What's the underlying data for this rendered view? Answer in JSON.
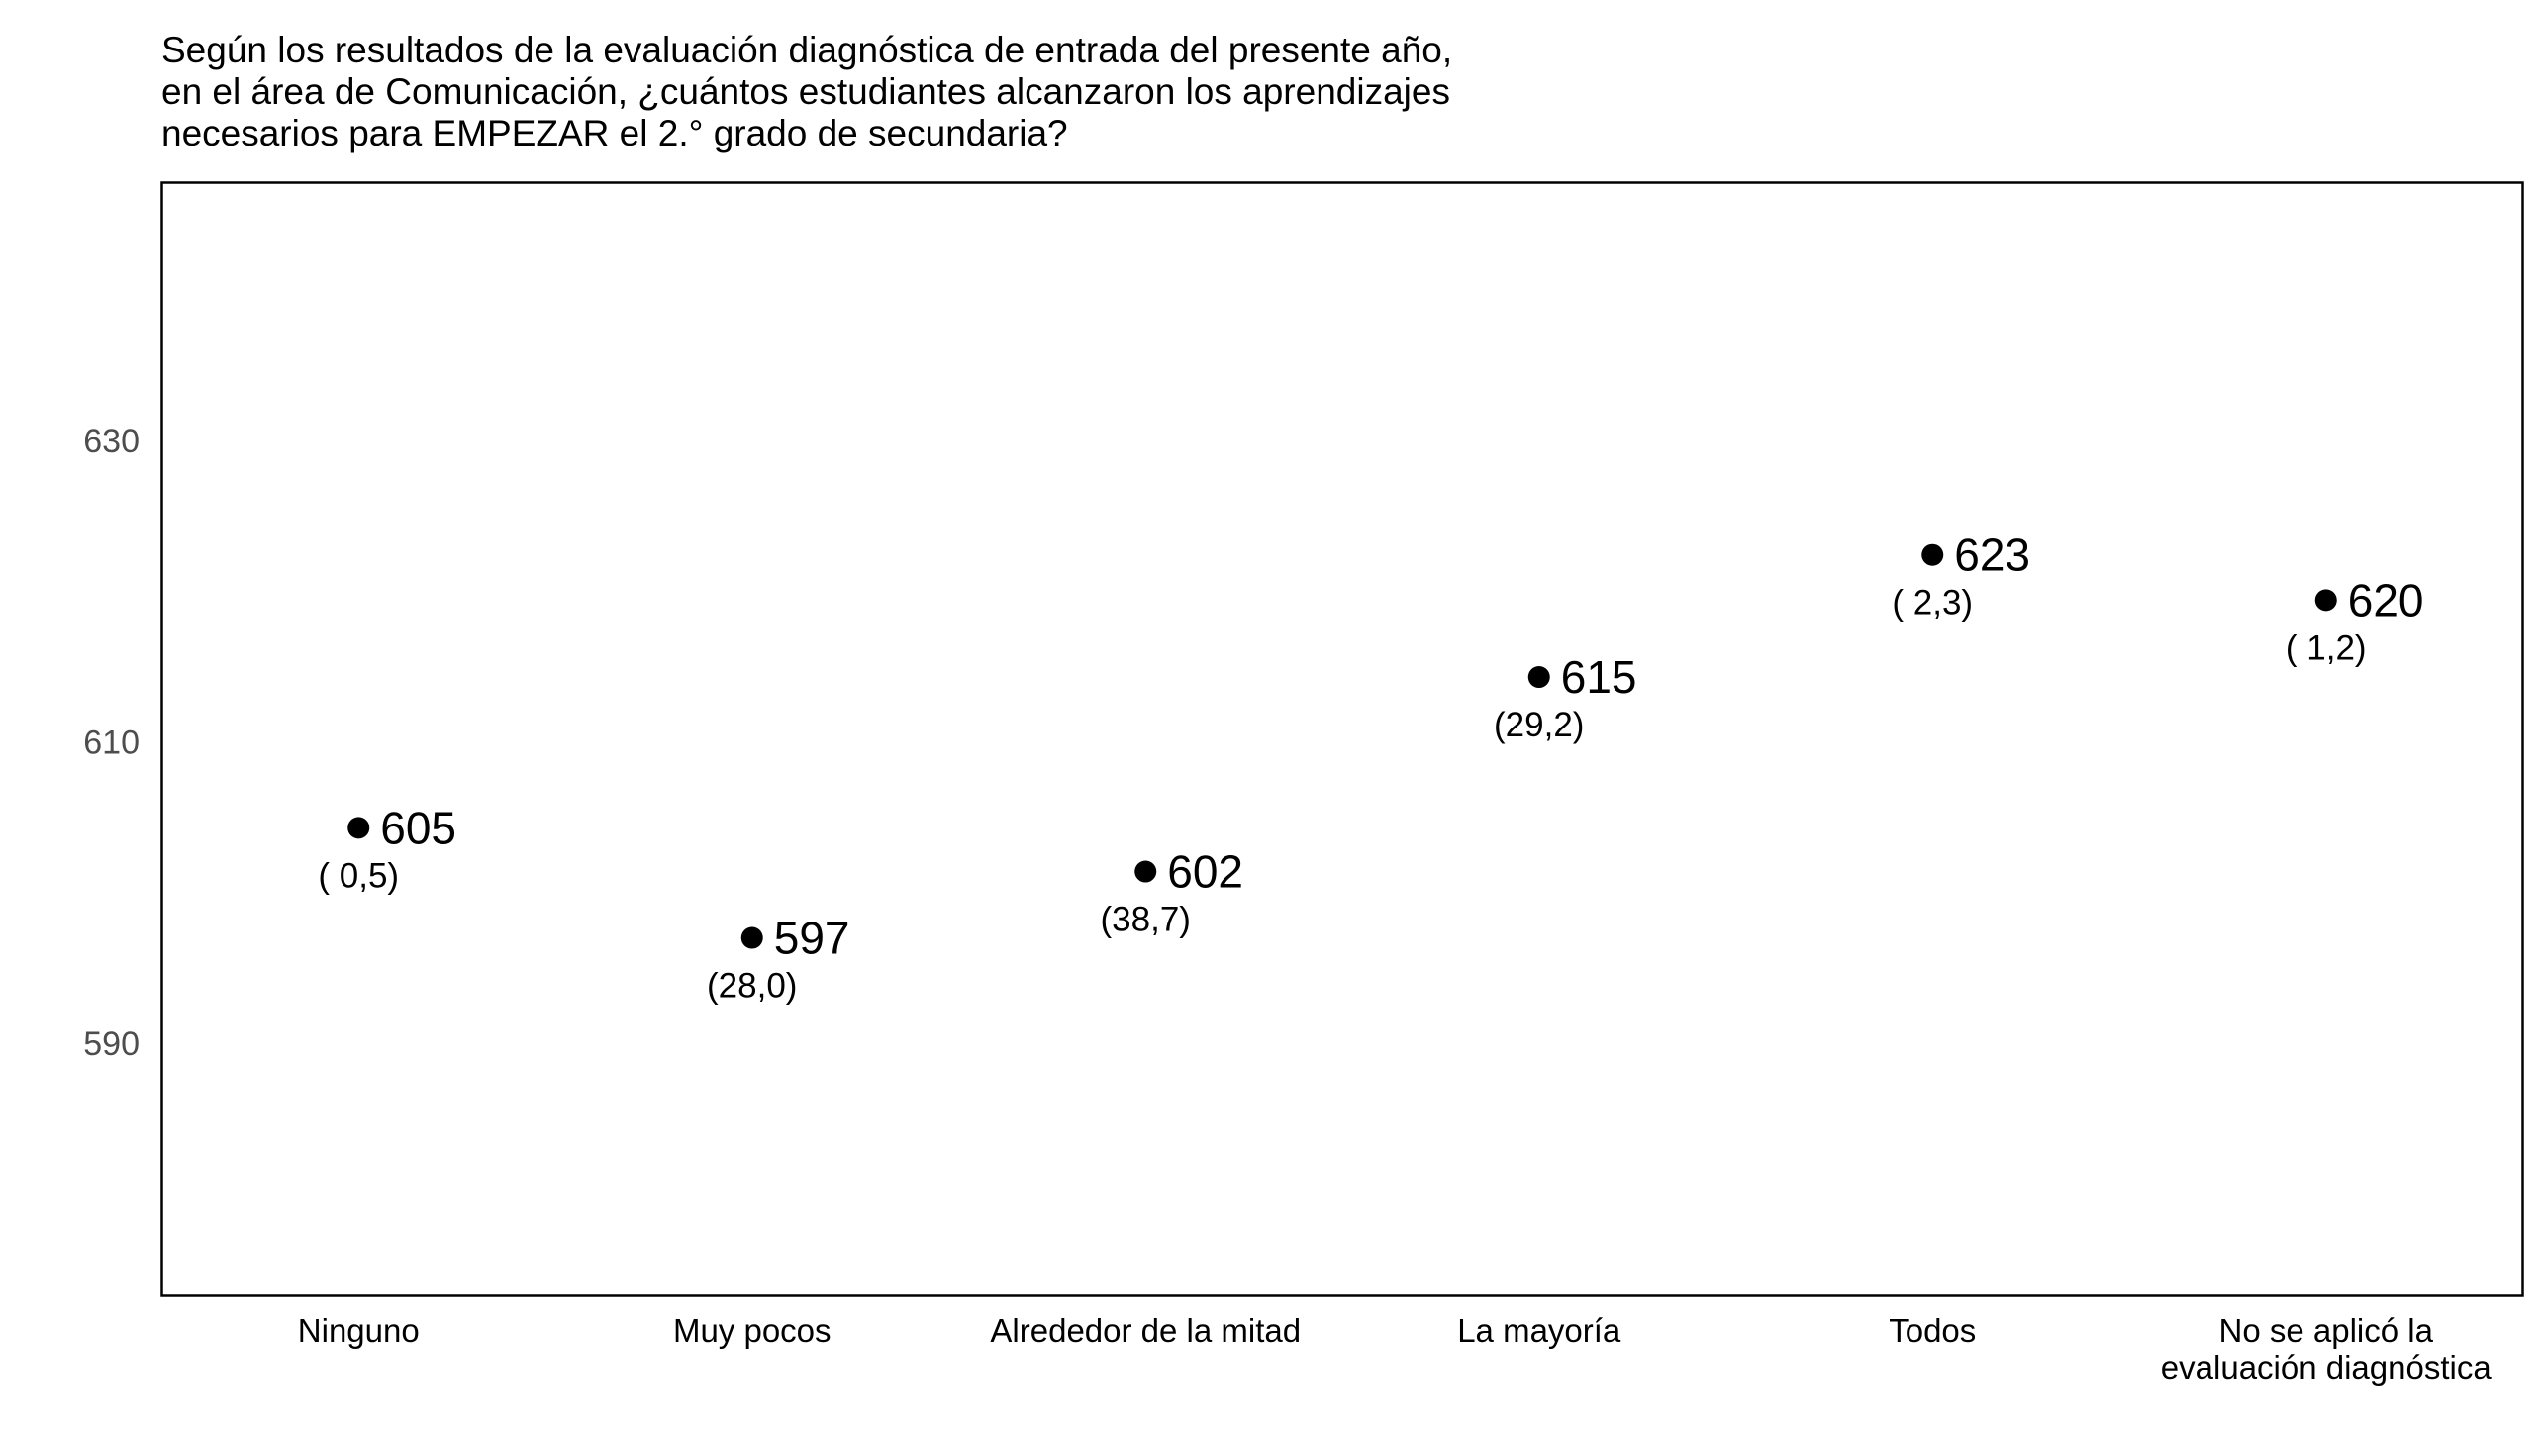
{
  "chart_data": {
    "type": "scatter",
    "title_lines": [
      "Según los resultados de la evaluación diagnóstica de entrada del presente año,",
      "en el área de Comunicación, ¿cuántos estudiantes alcanzaron los aprendizajes",
      "necesarios para EMPEZAR el 2.° grado de secundaria?"
    ],
    "categories": [
      "Ninguno",
      "Muy pocos",
      "Alrededor de la mitad",
      "La mayoría",
      "Todos",
      "No se aplicó la evaluación diagnóstica"
    ],
    "category_label_lines": [
      [
        "Ninguno"
      ],
      [
        "Muy pocos"
      ],
      [
        "Alrededor de la mitad"
      ],
      [
        "La mayoría"
      ],
      [
        "Todos"
      ],
      [
        "No se aplicó la",
        "evaluación diagnóstica"
      ]
    ],
    "values": [
      604.5,
      597.2,
      601.6,
      614.5,
      622.6,
      619.6
    ],
    "value_labels": [
      "605",
      "597",
      "602",
      "615",
      "623",
      "620"
    ],
    "percent_labels": [
      "( 0,5)",
      "(28,0)",
      "(38,7)",
      "(29,2)",
      "( 2,3)",
      "( 1,2)"
    ],
    "xlabel": "",
    "ylabel": "",
    "ylim": [
      573.5,
      647.3
    ],
    "yticks": [
      590,
      610,
      630
    ],
    "ytick_labels": [
      "590",
      "610",
      "630"
    ],
    "grid": false,
    "legend": "none",
    "colors": {
      "point": "#000000",
      "frame": "#000000",
      "tick_text": "#4d4d4d"
    }
  }
}
